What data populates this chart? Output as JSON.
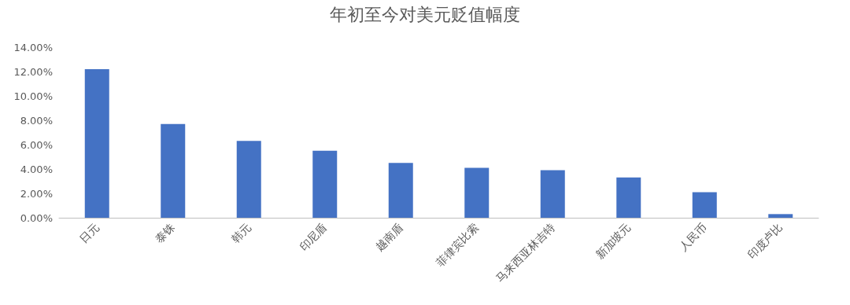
{
  "chart_data": {
    "type": "bar",
    "title": "年初至今对美元贬值幅度",
    "categories": [
      "日元",
      "泰铢",
      "韩元",
      "印尼盾",
      "越南盾",
      "菲律宾比索",
      "马来西亚林吉特",
      "新加坡元",
      "人民币",
      "印度卢比"
    ],
    "values": [
      12.2,
      7.7,
      6.3,
      5.5,
      4.5,
      4.1,
      3.9,
      3.3,
      2.1,
      0.3
    ],
    "color": "#4472c4",
    "ylim": [
      0,
      14
    ],
    "yticks": [
      {
        "value": 0,
        "label": "0.00%"
      },
      {
        "value": 2,
        "label": "2.00%"
      },
      {
        "value": 4,
        "label": "4.00%"
      },
      {
        "value": 6,
        "label": "6.00%"
      },
      {
        "value": 8,
        "label": "8.00%"
      },
      {
        "value": 10,
        "label": "10.00%"
      },
      {
        "value": 12,
        "label": "12.00%"
      },
      {
        "value": 14,
        "label": "14.00%"
      }
    ],
    "grid": false
  }
}
